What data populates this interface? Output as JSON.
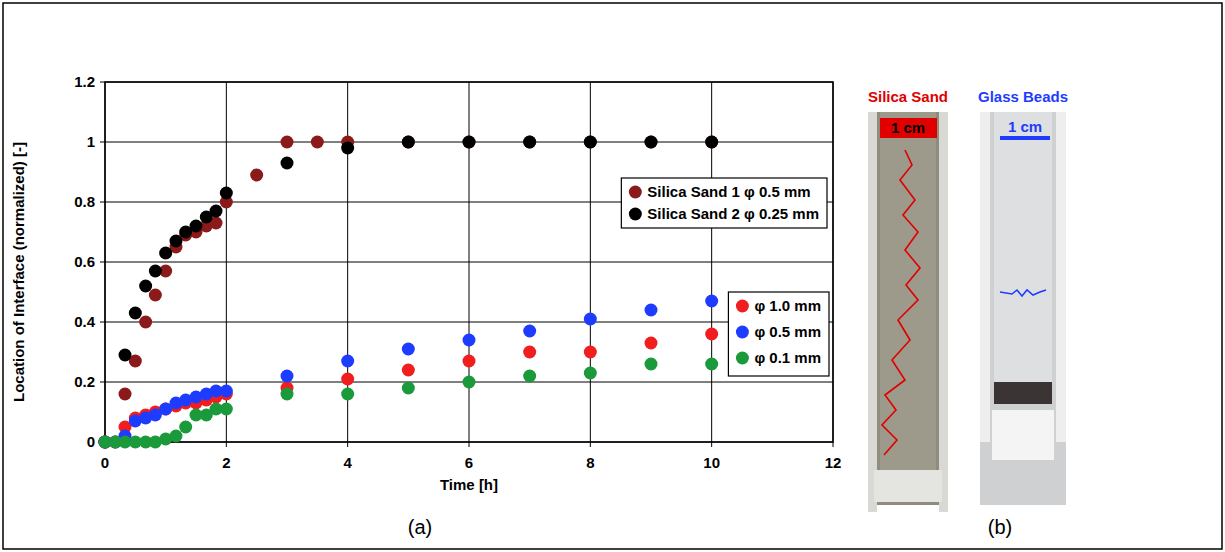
{
  "chart_data": {
    "type": "scatter",
    "x_label": "Time [h]",
    "y_label": "Location of Interface (normalized) [-]",
    "xlim": [
      0,
      12
    ],
    "xticks": [
      0,
      2,
      4,
      6,
      8,
      10,
      12
    ],
    "ylim": [
      0,
      1.2
    ],
    "yticks": [
      0,
      0.2,
      0.4,
      0.6,
      0.8,
      1,
      1.2
    ],
    "grid": true,
    "legend": "right",
    "marker": "circle",
    "series": [
      {
        "name": "Silica Sand 1 φ 0.5 mm",
        "color": "#8b1a1a",
        "x": [
          0,
          0.33,
          0.5,
          0.67,
          0.83,
          1.0,
          1.17,
          1.33,
          1.5,
          1.67,
          1.83,
          2.0,
          2.5,
          3.0,
          3.5,
          4.0,
          5,
          6,
          7,
          8,
          9,
          10
        ],
        "values": [
          0,
          0.16,
          0.27,
          0.4,
          0.49,
          0.57,
          0.65,
          0.69,
          0.7,
          0.72,
          0.73,
          0.8,
          0.89,
          1.0,
          1.0,
          1.0,
          1,
          1,
          1,
          1,
          1,
          1
        ]
      },
      {
        "name": "Silica Sand 2 φ 0.25 mm",
        "color": "#000000",
        "x": [
          0,
          0.33,
          0.5,
          0.67,
          0.83,
          1.0,
          1.17,
          1.33,
          1.5,
          1.67,
          1.83,
          2.0,
          3.0,
          4.0,
          5,
          6,
          7,
          8,
          9,
          10
        ],
        "values": [
          0,
          0.29,
          0.43,
          0.52,
          0.57,
          0.63,
          0.67,
          0.7,
          0.72,
          0.75,
          0.77,
          0.83,
          0.93,
          0.98,
          1,
          1,
          1,
          1,
          1,
          1
        ]
      },
      {
        "name": "φ 1.0 mm",
        "color": "#f01e1e",
        "x": [
          0,
          0.17,
          0.33,
          0.5,
          0.67,
          0.83,
          1.0,
          1.17,
          1.33,
          1.5,
          1.67,
          1.83,
          2.0,
          3,
          4,
          5,
          6,
          7,
          8,
          9,
          10
        ],
        "values": [
          0,
          0,
          0.05,
          0.08,
          0.09,
          0.1,
          0.11,
          0.12,
          0.13,
          0.13,
          0.14,
          0.15,
          0.16,
          0.18,
          0.21,
          0.24,
          0.27,
          0.3,
          0.3,
          0.33,
          0.36
        ]
      },
      {
        "name": "φ 0.5 mm",
        "color": "#1e3cff",
        "x": [
          0,
          0.17,
          0.33,
          0.5,
          0.67,
          0.83,
          1.0,
          1.17,
          1.33,
          1.5,
          1.67,
          1.83,
          2.0,
          3,
          4,
          5,
          6,
          7,
          8,
          9,
          10
        ],
        "values": [
          0,
          0,
          0.02,
          0.07,
          0.08,
          0.09,
          0.11,
          0.13,
          0.14,
          0.15,
          0.16,
          0.17,
          0.17,
          0.22,
          0.27,
          0.31,
          0.34,
          0.37,
          0.41,
          0.44,
          0.47
        ]
      },
      {
        "name": "φ 0.1 mm",
        "color": "#1a9a3a",
        "x": [
          0,
          0.17,
          0.33,
          0.5,
          0.67,
          0.83,
          1.0,
          1.17,
          1.33,
          1.5,
          1.67,
          1.83,
          2.0,
          3,
          4,
          5,
          6,
          7,
          8,
          9,
          10
        ],
        "values": [
          0,
          0,
          0,
          0,
          0,
          0,
          0.01,
          0.02,
          0.05,
          0.09,
          0.09,
          0.11,
          0.11,
          0.16,
          0.16,
          0.18,
          0.2,
          0.22,
          0.23,
          0.26,
          0.26
        ]
      }
    ]
  },
  "figure": {
    "panel_labels": [
      "(a)",
      "(b)"
    ],
    "photos": [
      {
        "title": "Silica Sand",
        "color": "#e00000",
        "scale": "1 cm"
      },
      {
        "title": "Glass Beads",
        "color": "#1e3cff",
        "scale": "1 cm"
      }
    ]
  }
}
